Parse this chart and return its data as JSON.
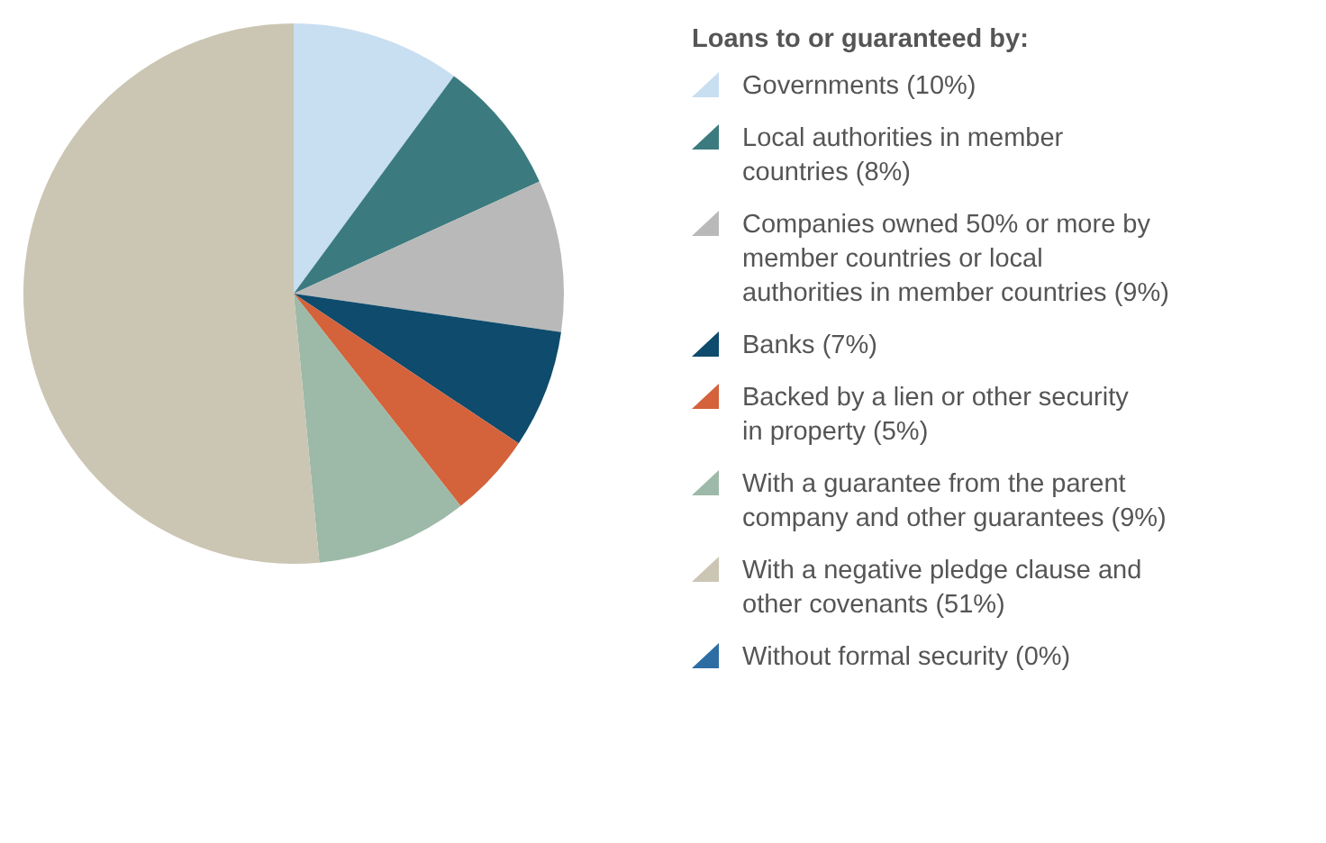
{
  "chart_data": {
    "type": "pie",
    "legend_title": "Loans to or guaranteed by:",
    "legend": "right",
    "categories": [
      "Governments (10%)",
      "Local authorities in member countries (8%)",
      "Companies owned 50% or more by member countries or local authorities in member countries (9%)",
      "Banks (7%)",
      "Backed by a lien or other security in property (5%)",
      "With a guarantee from the parent company and other guarantees (9%)",
      "With a negative pledge clause and other covenants (51%)",
      "Without formal security (0%)"
    ],
    "values": [
      10,
      8,
      9,
      7,
      5,
      9,
      51,
      0
    ],
    "colors": [
      "#c8def1",
      "#3b7b7f",
      "#b9b9b9",
      "#0e4b6c",
      "#d4623a",
      "#9db9a7",
      "#cbc5b3",
      "#2e6da4"
    ]
  }
}
